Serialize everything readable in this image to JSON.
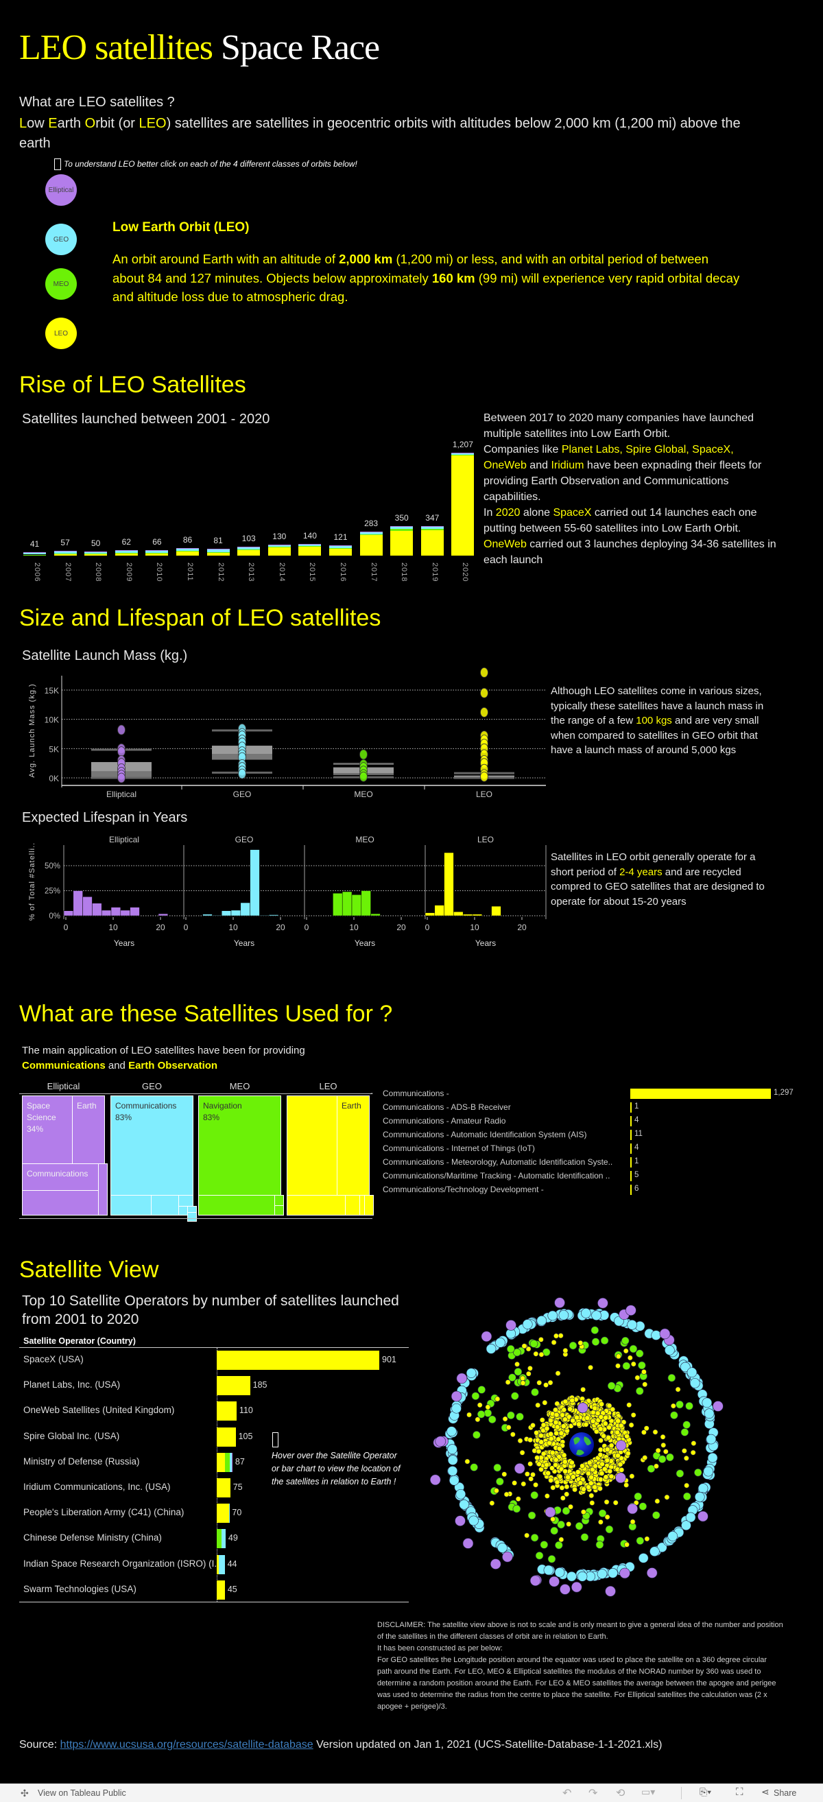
{
  "header": {
    "title_yellow": "LEO satellites",
    "title_white": "Space Race"
  },
  "colors": {
    "Elliptical": "#B37DEA",
    "GEO": "#80EDFE",
    "MEO": "#6CF107",
    "LEO": "#FFFF00",
    "highlight": "#FFFF00",
    "link": "#3f7fc0"
  },
  "intro": {
    "question": "What are LEO satellites ?",
    "definition": [
      [
        [
          "L",
          "y"
        ],
        [
          "ow ",
          ""
        ],
        [
          "E",
          "y"
        ],
        [
          "arth ",
          ""
        ],
        [
          "O",
          "y"
        ],
        [
          "rbit (or ",
          ""
        ],
        [
          "LEO",
          "y"
        ],
        [
          ") satellites are satellites in geocentric orbits with altitudes below 2,000 km (1,200 mi) above the",
          ""
        ]
      ],
      [
        [
          "earth",
          ""
        ]
      ]
    ],
    "hint_icon": "cursor-click-icon",
    "hint": "To understand LEO better click on each of the 4 different classes of orbits below!"
  },
  "orbit_buttons": [
    {
      "label": "Elliptical"
    },
    {
      "label": "GEO"
    },
    {
      "label": "MEO"
    },
    {
      "label": "LEO"
    }
  ],
  "orbit_info": {
    "title": "Low Earth Orbit (LEO)",
    "body": [
      [
        [
          "An orbit around Earth with an altitude of ",
          ""
        ],
        [
          "2,000 km",
          "b"
        ],
        [
          " (1,200 mi) or less, and with an orbital period of between",
          ""
        ]
      ],
      [
        [
          "about 84 and 127 minutes. Objects below approximately ",
          ""
        ],
        [
          "160 km",
          "b"
        ],
        [
          " (99 mi) will experience very rapid orbital decay",
          ""
        ]
      ],
      [
        [
          "and altitude loss due to atmospheric drag.",
          ""
        ]
      ]
    ]
  },
  "rise": {
    "heading": "Rise of LEO Satellites",
    "subtitle": "Satellites launched between 2001 - 2020",
    "note": [
      [
        [
          "Between 2017 to 2020 many companies have launched",
          ""
        ]
      ],
      [
        [
          "multiple satellites into Low Earth Orbit.",
          ""
        ]
      ],
      [
        [
          "Companies like  ",
          ""
        ],
        [
          "Planet Labs, Spire Global,  SpaceX,",
          "y"
        ]
      ],
      [
        [
          "OneWeb",
          "y"
        ],
        [
          " and ",
          ""
        ],
        [
          "Iridium",
          "y"
        ],
        [
          " have been expnading their fleets for",
          ""
        ]
      ],
      [
        [
          "providing Earth Observation and Communicattions",
          ""
        ]
      ],
      [
        [
          "capabilities.",
          ""
        ]
      ],
      [
        [
          " ",
          ""
        ]
      ],
      [
        [
          "In ",
          ""
        ],
        [
          "2020",
          "y"
        ],
        [
          " alone ",
          ""
        ],
        [
          "SpaceX",
          "y"
        ],
        [
          " carried out 14 launches each one",
          ""
        ]
      ],
      [
        [
          "putting between 55-60 satellites into Low Earth Orbit.",
          ""
        ]
      ],
      [
        [
          "OneWeb",
          "y"
        ],
        [
          " carried out 3 launches deploying 34-36 satellites in",
          ""
        ]
      ],
      [
        [
          "each launch",
          ""
        ]
      ]
    ]
  },
  "size": {
    "heading": "Size and Lifespan of LEO satellites",
    "mass_title": "Satellite Launch Mass (kg.)",
    "mass_note": [
      [
        [
          "Although LEO satellites come in various sizes,",
          ""
        ]
      ],
      [
        [
          "typically these satellites have a launch mass in",
          ""
        ]
      ],
      [
        [
          "the range of a few ",
          ""
        ],
        [
          "100 kgs",
          "y"
        ],
        [
          " and are very small",
          ""
        ]
      ],
      [
        [
          "when compared to satellites in GEO orbit that",
          ""
        ]
      ],
      [
        [
          "have a launch mass of around 5,000 kgs",
          ""
        ]
      ]
    ],
    "life_title": "Expected Lifespan in Years",
    "life_note": [
      [
        [
          "Satellites in LEO orbit generally operate for a",
          ""
        ]
      ],
      [
        [
          "short period of ",
          ""
        ],
        [
          "2-4 years",
          "y"
        ],
        [
          " and are recycled",
          ""
        ]
      ],
      [
        [
          "compred to GEO satellites that are designed to",
          ""
        ]
      ],
      [
        [
          "operate for about 15-20 years",
          ""
        ]
      ]
    ]
  },
  "usage": {
    "heading": "What are these Satellites Used for ?",
    "subtitle": [
      [
        [
          "The main application of LEO satellites have been for providing",
          ""
        ]
      ],
      [
        [
          "Communications",
          "yb"
        ],
        [
          " and ",
          ""
        ],
        [
          "Earth Observation",
          "yb"
        ]
      ]
    ],
    "treemap": {
      "Elliptical": {
        "header": "Elliptical",
        "cells": [
          {
            "label": "Space Science",
            "pct": "34%"
          },
          {
            "label": "Earth",
            "pct": ""
          },
          {
            "label": "Communications",
            "pct": ""
          }
        ]
      },
      "GEO": {
        "header": "GEO",
        "cells": [
          {
            "label": "Communications",
            "pct": "83%"
          }
        ]
      },
      "MEO": {
        "header": "MEO",
        "cells": [
          {
            "label": "Navigation",
            "pct": "83%"
          }
        ]
      },
      "LEO": {
        "header": "LEO",
        "cells": [
          {
            "label": "Earth",
            "pct": ""
          }
        ]
      }
    },
    "list_dash": "-"
  },
  "view": {
    "heading": "Satellite View",
    "subtitle_lines": [
      "Top 10 Satellite Operators by number of satellites launched",
      "from 2001 to 2020"
    ],
    "column_header": "Satellite Operator (Country)",
    "hint_icon": "cursor-click-icon",
    "hint_lines": [
      "Hover over the Satellite Operator",
      "or bar chart to view the location of",
      "the satellites in relation to Earth !"
    ],
    "disclaimer": [
      "DISCLAIMER: The satellite view above is not to scale and is only meant to give a general idea of the number and position",
      "of the satellites in the different classes of orbit are in relation to Earth.",
      "It has been constructed as per below:",
      "For GEO satellites the Longitude position around the equator was used to place the satellite on a 360 degree circular",
      "path around the Earth. For LEO, MEO & Elliptical satellites  the modulus of the NORAD number by 360 was used to",
      "determine a random position around the Earth. For LEO & MEO satellites the average between the apogee and perigee",
      "was used to determine the radius from the centre to place the satellite. For Elliptical satellites the calculation was (2 x",
      "apogee + perigee)/3."
    ]
  },
  "source": {
    "prefix": "Source: ",
    "link": "https://www.ucsusa.org/resources/satellite-database",
    "suffix": " Version updated on Jan 1, 2021 (UCS-Satellite-Database-1-1-2021.xls)"
  },
  "footer": {
    "view_label": "View on Tableau Public",
    "share_label": "Share",
    "icons": [
      "undo-icon",
      "redo-icon",
      "revert-icon",
      "refresh-icon",
      "download-icon",
      "fullscreen-icon",
      "share-icon"
    ]
  },
  "chart_data": [
    {
      "id": "launches",
      "type": "bar",
      "stacked": true,
      "title": "Satellites launched between 2001 - 2020",
      "categories": [
        "2006",
        "2007",
        "2008",
        "2009",
        "2010",
        "2011",
        "2012",
        "2013",
        "2014",
        "2015",
        "2016",
        "2017",
        "2018",
        "2019",
        "2020"
      ],
      "totals": [
        41,
        57,
        50,
        62,
        66,
        86,
        81,
        103,
        130,
        140,
        121,
        283,
        350,
        347,
        1207
      ],
      "totals_labels": [
        "41",
        "57",
        "50",
        "62",
        "66",
        "86",
        "81",
        "103",
        "130",
        "140",
        "121",
        "283",
        "350",
        "347",
        "1,207"
      ],
      "series": [
        {
          "class": "LEO",
          "values": [
            8,
            22,
            22,
            30,
            30,
            45,
            35,
            68,
            95,
            105,
            83,
            243,
            290,
            300,
            1180
          ]
        },
        {
          "class": "MEO",
          "values": [
            4,
            5,
            3,
            4,
            6,
            8,
            6,
            5,
            6,
            7,
            5,
            4,
            20,
            10,
            6
          ]
        },
        {
          "class": "GEO",
          "values": [
            25,
            26,
            22,
            25,
            27,
            29,
            36,
            26,
            25,
            24,
            29,
            31,
            33,
            30,
            15
          ]
        },
        {
          "class": "Elliptical",
          "values": [
            4,
            4,
            3,
            3,
            3,
            4,
            4,
            4,
            4,
            4,
            4,
            5,
            7,
            7,
            6
          ]
        }
      ]
    },
    {
      "id": "mass",
      "type": "boxplot",
      "ylabel": "Avg. Launch Mass (kg.)",
      "ylim": [
        0,
        18500
      ],
      "yticks": [
        "0K",
        "5K",
        "10K",
        "15K"
      ],
      "ytick_values": [
        0,
        5000,
        10000,
        15000
      ],
      "grid": true,
      "categories": [
        "Elliptical",
        "GEO",
        "MEO",
        "LEO"
      ],
      "boxes": [
        {
          "q1": 0,
          "median": 1100,
          "q3": 2700,
          "whisker_low": 0,
          "whisker_high": 4800,
          "points": [
            8200,
            5000,
            4500,
            3000,
            2500,
            1600,
            1000,
            500,
            0
          ]
        },
        {
          "q1": 3100,
          "median": 4100,
          "q3": 5500,
          "whisker_low": 900,
          "whisker_high": 8100,
          "points": [
            8400,
            7600,
            7200,
            6500,
            6000,
            5300,
            4500,
            4000,
            3500,
            2300,
            1800,
            1200,
            700
          ]
        },
        {
          "q1": 500,
          "median": 800,
          "q3": 1800,
          "whisker_low": 100,
          "whisker_high": 2400,
          "points": [
            4000,
            2300,
            1800,
            1200,
            600,
            200
          ]
        },
        {
          "q1": 0,
          "median": 100,
          "q3": 400,
          "whisker_low": 0,
          "whisker_high": 800,
          "points": [
            18000,
            14500,
            11200,
            7200,
            6500,
            5800,
            5000,
            4000,
            3000,
            2500,
            1500,
            600,
            200
          ]
        }
      ]
    },
    {
      "id": "lifespan",
      "type": "bar",
      "subtype": "histogram",
      "ylabel": "% of Total #Satelli..",
      "xlabel": "Years",
      "yticks": [
        "0%",
        "25%",
        "50%"
      ],
      "ytick_values": [
        0,
        25,
        50
      ],
      "xticks": [
        "0",
        "10",
        "20"
      ],
      "xtick_values": [
        0,
        10,
        20
      ],
      "bin_width_years": 2,
      "grid": true,
      "panels": [
        {
          "class": "Elliptical",
          "bins": [
            0,
            2,
            4,
            6,
            8,
            10,
            12,
            14,
            20
          ],
          "values": [
            5,
            25,
            19,
            12.5,
            5.5,
            8.5,
            5.5,
            8.5,
            2
          ]
        },
        {
          "class": "GEO",
          "bins": [
            4,
            6,
            8,
            10,
            12,
            14,
            16,
            18
          ],
          "values": [
            1.5,
            0.5,
            5,
            5.5,
            13,
            66,
            0.5,
            1
          ]
        },
        {
          "class": "MEO",
          "bins": [
            6,
            8,
            10,
            12,
            14
          ],
          "values": [
            22.5,
            24,
            21,
            25,
            2
          ]
        },
        {
          "class": "LEO",
          "bins": [
            0,
            2,
            4,
            6,
            8,
            10,
            14
          ],
          "values": [
            3,
            10.5,
            63,
            4,
            1.5,
            1.5,
            9.5
          ]
        }
      ]
    },
    {
      "id": "purposes",
      "type": "bar",
      "orientation": "horizontal",
      "categories": [
        "Communications -",
        "Communications - ADS-B Receiver",
        "Communications - Amateur Radio",
        "Communications - Automatic Identification System (AIS)",
        "Communications - Internet of Things (IoT)",
        "Communications - Meteorology, Automatic Identification Syste..",
        "Communications/Maritime Tracking - Automatic Identification ..",
        "Communications/Technology Development -"
      ],
      "values": [
        1297,
        1,
        4,
        11,
        4,
        1,
        5,
        6
      ],
      "labels": [
        "1,297",
        "1",
        "4",
        "11",
        "4",
        "1",
        "5",
        "6"
      ]
    },
    {
      "id": "operators",
      "type": "bar",
      "orientation": "horizontal",
      "stacked": true,
      "categories": [
        "SpaceX (USA)",
        "Planet Labs, Inc. (USA)",
        "OneWeb Satellites (United Kingdom)",
        "Spire Global Inc. (USA)",
        "Ministry of Defense (Russia)",
        "Iridium Communications, Inc. (USA)",
        "People's Liberation Army (C41) (China)",
        "Chinese Defense Ministry (China)",
        "Indian Space Research Organization (ISRO) (I..",
        "Swarm Technologies (USA)"
      ],
      "totals": [
        901,
        185,
        110,
        105,
        87,
        75,
        70,
        49,
        44,
        45
      ],
      "segments": [
        {
          "LEO": 901
        },
        {
          "LEO": 185
        },
        {
          "LEO": 110
        },
        {
          "LEO": 105
        },
        {
          "LEO": 45,
          "MEO": 27,
          "GEO": 11,
          "Elliptical": 4
        },
        {
          "LEO": 75
        },
        {
          "LEO": 69,
          "GEO": 1
        },
        {
          "MEO": 28,
          "GEO": 21
        },
        {
          "LEO": 12,
          "GEO": 32
        },
        {
          "LEO": 45
        }
      ]
    },
    {
      "id": "satellite-view",
      "type": "scatter",
      "subtype": "polar",
      "series": [
        {
          "class": "LEO"
        },
        {
          "class": "MEO"
        },
        {
          "class": "GEO"
        },
        {
          "class": "Elliptical"
        }
      ]
    }
  ]
}
